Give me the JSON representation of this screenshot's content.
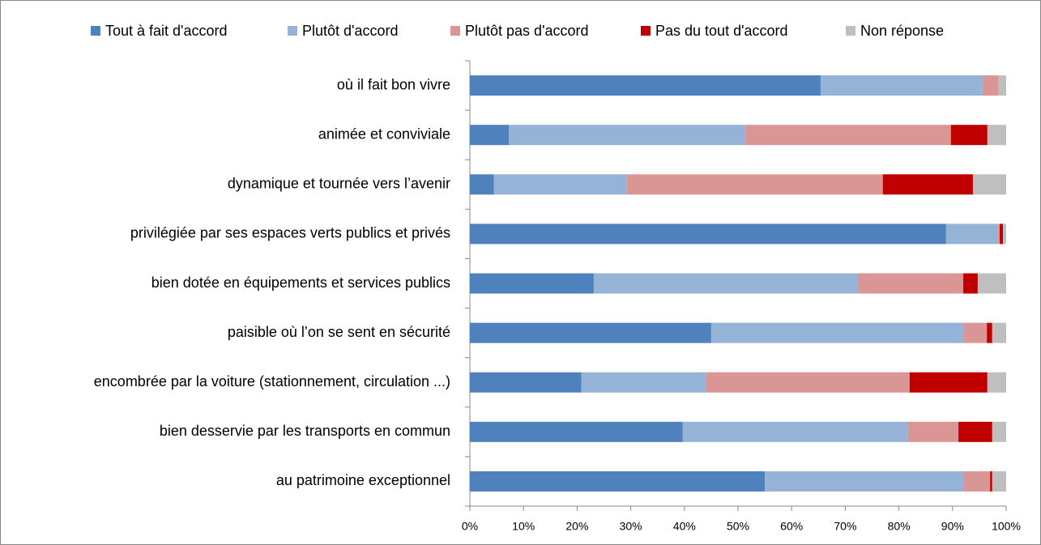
{
  "chart_data": {
    "type": "stacked-bar-horizontal",
    "categories": [
      "où il fait bon vivre",
      "animée et conviviale",
      "dynamique et tournée vers l’avenir",
      "privilégiée par ses espaces verts publics et privés",
      "bien dotée en équipements et services publics",
      "paisible où l’on se sent en sécurité",
      "encombrée par la voiture (stationnement, circulation ...)",
      "bien desservie par les transports en commun",
      "au patrimoine exceptionnel"
    ],
    "series": [
      {
        "name": "Tout à fait d'accord",
        "color": "#4f81bd",
        "values": [
          65.4,
          7.3,
          4.5,
          88.8,
          23.1,
          45.0,
          20.8,
          39.7,
          55.0
        ]
      },
      {
        "name": "Plutôt d'accord",
        "color": "#95b3d7",
        "values": [
          30.2,
          44.1,
          24.7,
          9.7,
          49.4,
          47.0,
          23.3,
          42.0,
          37.0
        ]
      },
      {
        "name": "Plutôt pas d'accord",
        "color": "#d99694",
        "values": [
          3.0,
          38.3,
          47.8,
          0.3,
          19.5,
          4.4,
          37.9,
          9.4,
          5.0
        ]
      },
      {
        "name": "Pas du tout d'accord",
        "color": "#c00000",
        "values": [
          0,
          6.8,
          16.8,
          0.6,
          2.7,
          1.0,
          14.5,
          6.3,
          0.4
        ]
      },
      {
        "name": "Non réponse",
        "color": "#bfbfbf",
        "values": [
          1.4,
          3.5,
          6.2,
          0.6,
          5.3,
          2.6,
          3.5,
          2.6,
          2.6
        ]
      }
    ],
    "xlim": [
      0,
      100
    ],
    "xticks": [
      {
        "value": 0,
        "label": "0%"
      },
      {
        "value": 10,
        "label": "10%"
      },
      {
        "value": 20,
        "label": "20%"
      },
      {
        "value": 30,
        "label": "30%"
      },
      {
        "value": 40,
        "label": "40%"
      },
      {
        "value": 50,
        "label": "50%"
      },
      {
        "value": 60,
        "label": "60%"
      },
      {
        "value": 70,
        "label": "70%"
      },
      {
        "value": 80,
        "label": "80%"
      },
      {
        "value": 90,
        "label": "90%"
      },
      {
        "value": 100,
        "label": "100%"
      }
    ],
    "legend": "top"
  }
}
